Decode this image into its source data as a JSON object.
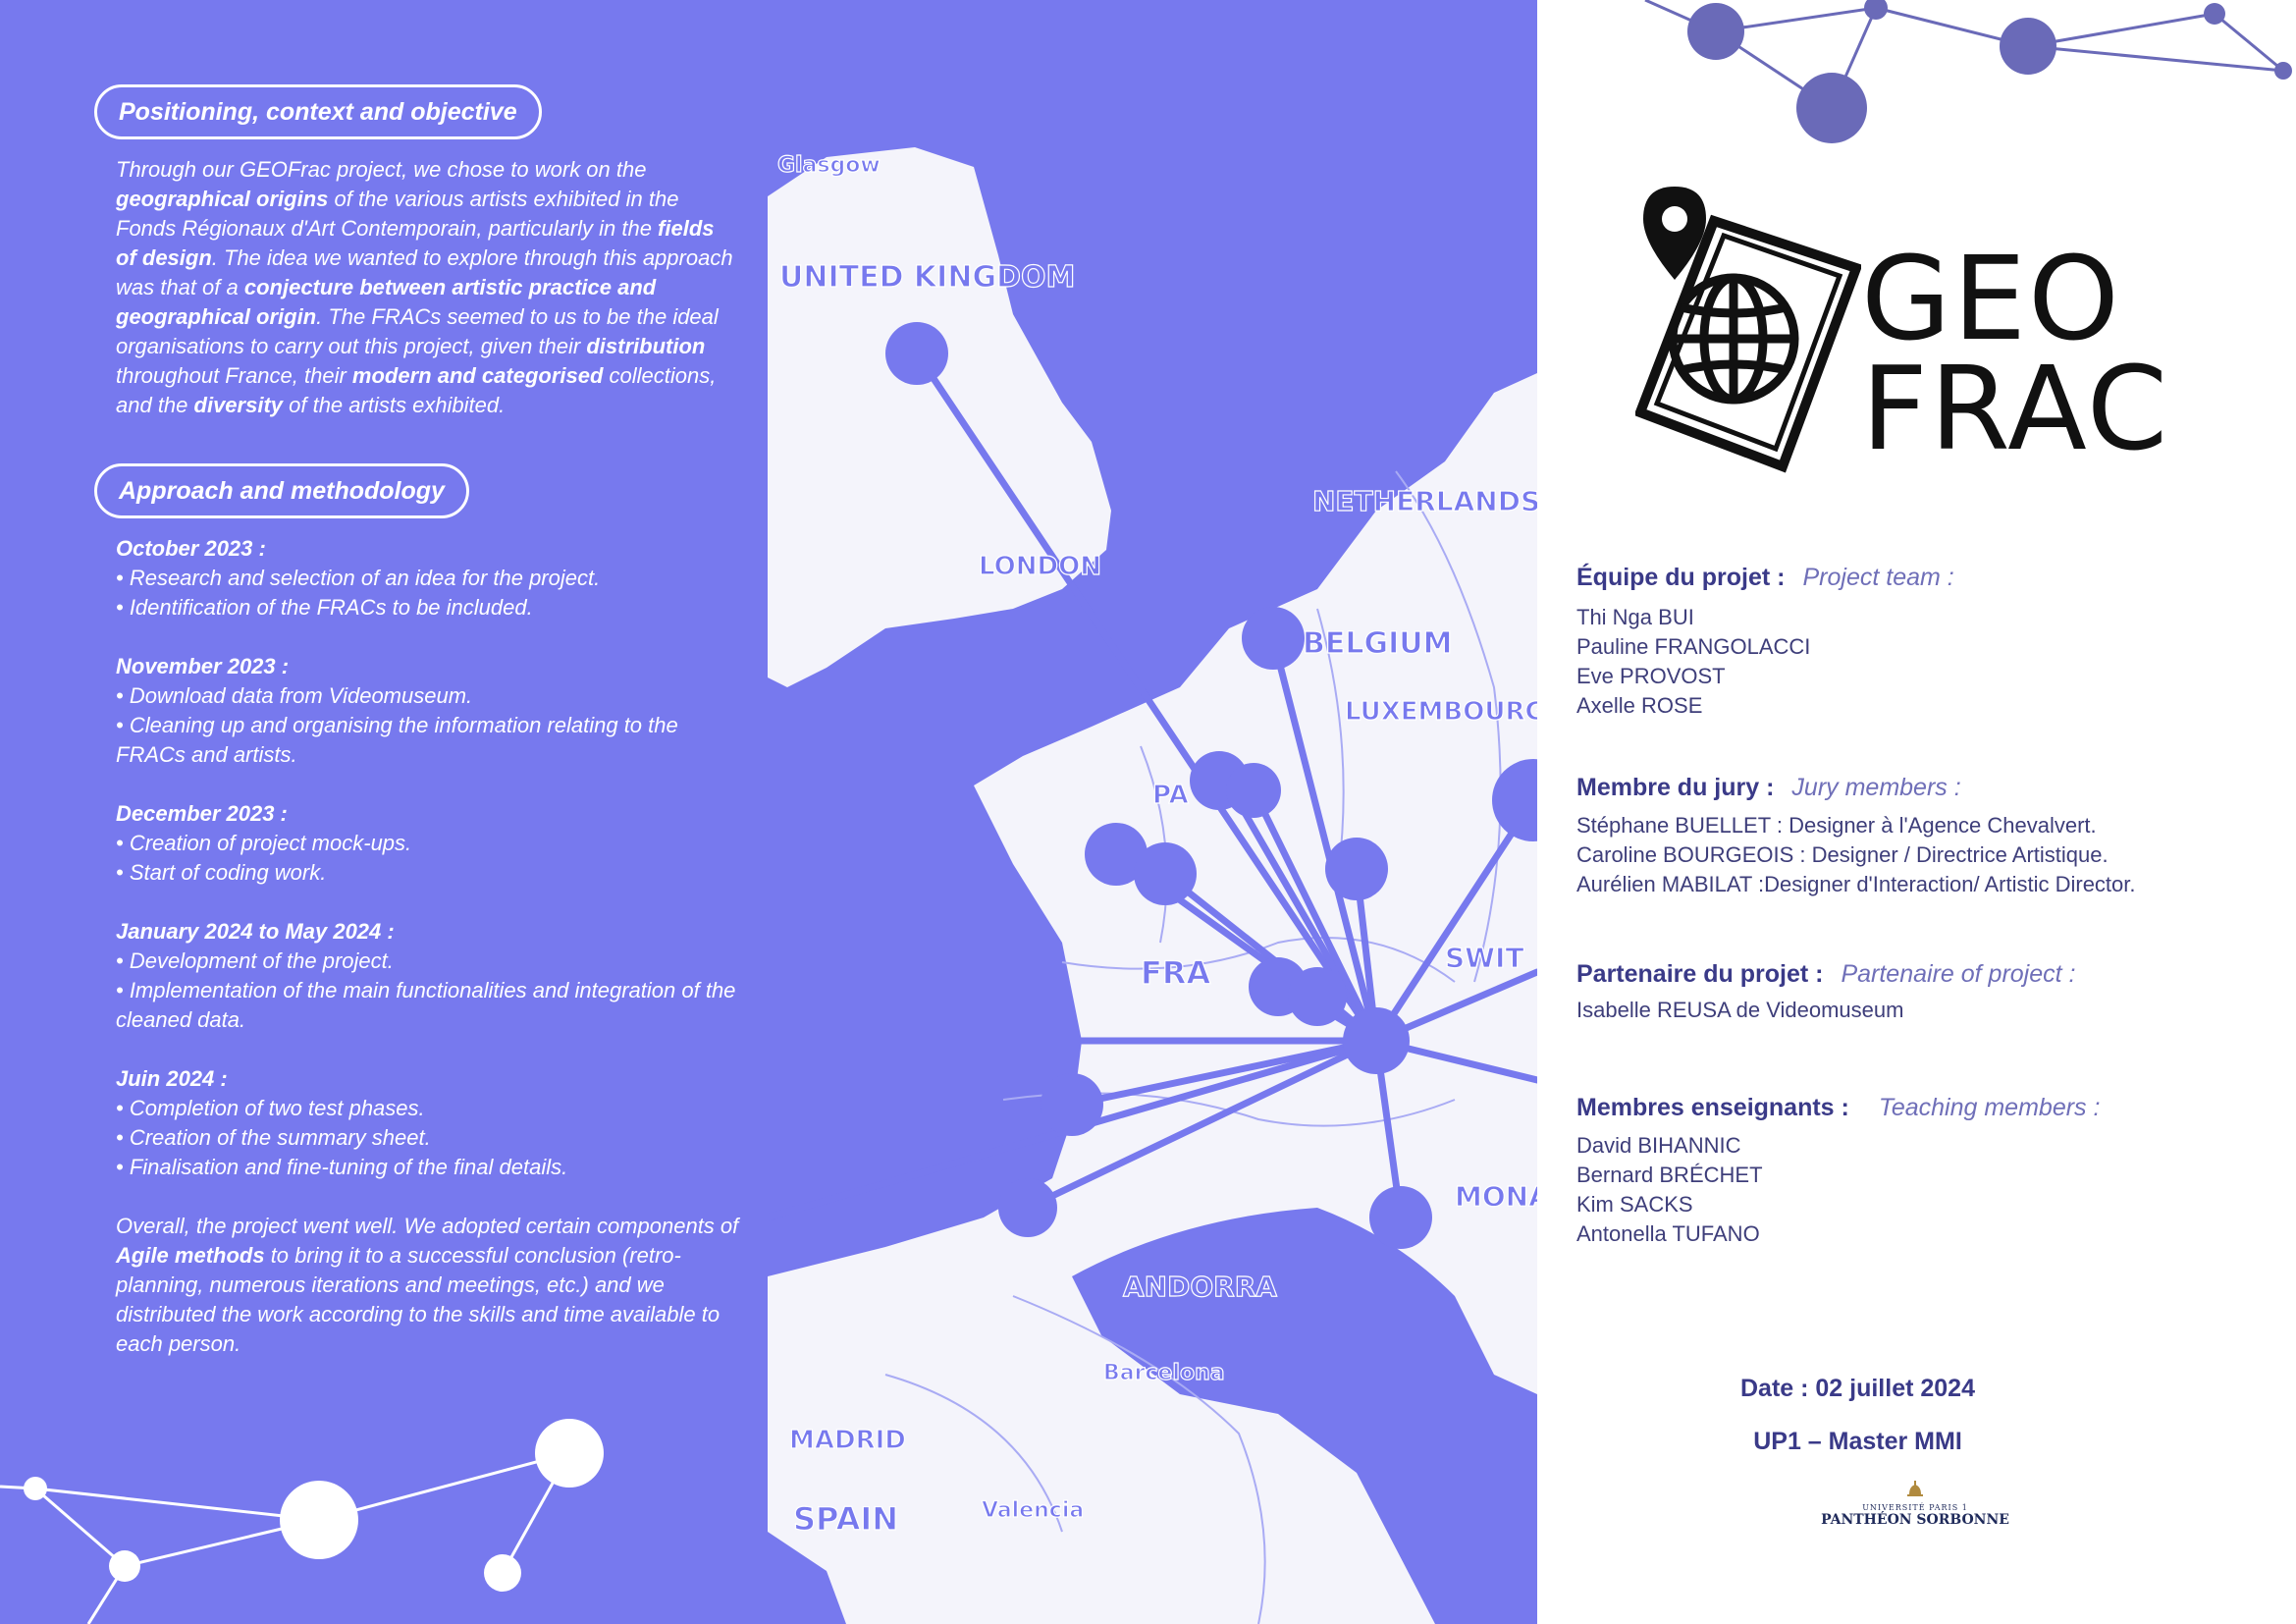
{
  "left": {
    "section1_title": "Positioning, context and objective",
    "section1_text": [
      {
        "t": "Through our GEOFrac project, we chose to work on the "
      },
      {
        "t": "geographical origins",
        "b": true
      },
      {
        "t": " of the various artists exhibited in the Fonds Régionaux d'Art Contemporain, particularly in the "
      },
      {
        "t": "fields of design",
        "b": true
      },
      {
        "t": ". The idea we wanted to explore through this approach was that of a "
      },
      {
        "t": "conjecture between artistic practice and geographical origin",
        "b": true
      },
      {
        "t": ". The FRACs seemed to us to be the ideal organisations to carry out this project, given their "
      },
      {
        "t": "distribution",
        "b": true
      },
      {
        "t": " throughout France, their "
      },
      {
        "t": "modern and categorised",
        "b": true
      },
      {
        "t": " collections, and the "
      },
      {
        "t": "diversity",
        "b": true
      },
      {
        "t": " of the artists exhibited."
      }
    ],
    "section2_title": "Approach and methodology",
    "steps": [
      {
        "title": "October 2023 :",
        "items": [
          "• Research and selection of an idea for the project.",
          "• Identification of the FRACs  to be included."
        ]
      },
      {
        "title": "November 2023 :",
        "items": [
          "• Download data from Videomuseum.",
          "• Cleaning up and organising the information relating to the FRACs and artists."
        ]
      },
      {
        "title": "December 2023 :",
        "items": [
          "• Creation of project mock-ups.",
          "• Start of coding work."
        ]
      },
      {
        "title": "January 2024 to May 2024 :",
        "items": [
          "• Development of the project.",
          "• Implementation of the main functionalities and integration of the cleaned data."
        ]
      },
      {
        "title": "Juin 2024 :",
        "items": [
          "• Completion of two test phases.",
          "• Creation of the summary sheet.",
          "• Finalisation and fine-tuning of the final details."
        ]
      }
    ],
    "conclusion": [
      {
        "t": "Overall, the project went well. We adopted certain components of "
      },
      {
        "t": "Agile methods",
        "b": true
      },
      {
        "t": " to bring it to a successful conclusion (retro-planning, numerous iterations and meetings, etc.) and we distributed the work according to the skills and time available to each person."
      }
    ]
  },
  "map": {
    "labels": [
      "Glasgow",
      "UNITED KINGDOM",
      "LONDON",
      "NETHERLANDS",
      "BELGIUM",
      "LUXEMBOURG",
      "PA",
      "FRA",
      "SWIT",
      "MONA",
      "ANDORRA",
      "Barcelona",
      "MADRID",
      "SPAIN",
      "Valencia"
    ]
  },
  "right": {
    "logo_line1": "GEO",
    "logo_line2": "FRAC",
    "team_label": "Équipe du projet :",
    "team_label_en": "Project team :",
    "team": [
      "Thi Nga BUI",
      "Pauline FRANGOLACCI",
      "Eve PROVOST",
      "Axelle ROSE"
    ],
    "jury_label": "Membre du jury :",
    "jury_label_en": "Jury members :",
    "jury": [
      "Stéphane BUELLET :  Designer à l'Agence Chevalvert.",
      "Caroline BOURGEOIS : Designer / Directrice Artistique.",
      "Aurélien MABILAT :Designer d'Interaction/ Artistic Director."
    ],
    "partner_label": "Partenaire du projet :",
    "partner_label_en": "Partenaire of project :",
    "partner": [
      "Isabelle REUSA de Videomuseum"
    ],
    "teachers_label": "Membres enseignants :",
    "teachers_label_en": "Teaching members :",
    "teachers": [
      "David BIHANNIC",
      "Bernard BRÉCHET",
      "Kim SACKS",
      "Antonella TUFANO"
    ],
    "date": "Date : 02 juillet 2024",
    "program": "UP1 – Master MMI",
    "university_small": "UNIVERSITÉ PARIS 1",
    "university": "PANTHÉON SORBONNE"
  },
  "colors": {
    "accent": "#7779ee",
    "dark": "#3a3a88",
    "node": "#6a6ab8"
  }
}
